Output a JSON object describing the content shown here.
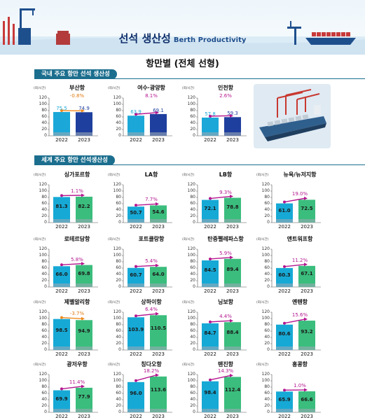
{
  "banner": {
    "title_ko": "선석 생산성",
    "title_en": "Berth Productivity"
  },
  "page_title": "항만별 (전체 선형)",
  "colors": {
    "domestic_2022": "#1ba8d8",
    "domestic_2023": "#1f3f9e",
    "world_2022": "#16a9d6",
    "world_2023": "#3bbd7d",
    "growth_line": "#b4168f",
    "decline_line": "#f08a1c",
    "growth_text": "#b4168f",
    "decline_text": "#e27a10",
    "domestic_value_2022": "#1ba8d8",
    "domestic_value_2023": "#1f3f9e",
    "world_value": "#1a1a1a"
  },
  "domestic": {
    "section_label": "국내 주요 항만 선석 생산성",
    "charts": [
      {
        "port": "부산항",
        "unit": "(회/시간)",
        "growth": "-0.8%",
        "values": [
          75.5,
          74.9
        ],
        "value_labels": [
          "75.5",
          "74.9"
        ]
      },
      {
        "port": "여수·광양항",
        "unit": "(회/시간)",
        "growth": "8.1%",
        "values": [
          63.9,
          69.1
        ],
        "value_labels": [
          "63.9",
          "69.1"
        ]
      },
      {
        "port": "인천항",
        "unit": "(회/시간)",
        "growth": "2.6%",
        "values": [
          57.8,
          59.3
        ],
        "value_labels": [
          "57.8",
          "59.3"
        ]
      }
    ]
  },
  "world": {
    "section_label": "세계 주요 항만 선석생산성",
    "charts": [
      {
        "port": "싱가포르항",
        "unit": "(회/시간)",
        "growth": "1.1%",
        "values": [
          81.3,
          82.2
        ],
        "value_labels": [
          "81.3",
          "82.2"
        ]
      },
      {
        "port": "LA항",
        "unit": "(회/시간)",
        "growth": "7.7%",
        "values": [
          50.7,
          54.6
        ],
        "value_labels": [
          "50.7",
          "54.6"
        ]
      },
      {
        "port": "LB항",
        "unit": "(회/시간)",
        "growth": "9.3%",
        "values": [
          72.1,
          78.8
        ],
        "value_labels": [
          "72.1",
          "78.8"
        ]
      },
      {
        "port": "뉴욕/뉴저지항",
        "unit": "(회/시간)",
        "growth": "19.0%",
        "values": [
          61.0,
          72.5
        ],
        "value_labels": [
          "61.0",
          "72.5"
        ]
      },
      {
        "port": "로테르담항",
        "unit": "(회/시간)",
        "growth": "5.8%",
        "values": [
          66.0,
          69.8
        ],
        "value_labels": [
          "66.0",
          "69.8"
        ]
      },
      {
        "port": "포트클랑항",
        "unit": "(회/시간)",
        "growth": "5.4%",
        "values": [
          60.7,
          64.0
        ],
        "value_labels": [
          "60.7",
          "64.0"
        ]
      },
      {
        "port": "탄중펠레파스항",
        "unit": "(회/시간)",
        "growth": "5.9%",
        "values": [
          84.5,
          89.4
        ],
        "value_labels": [
          "84.5",
          "89.4"
        ]
      },
      {
        "port": "앤트워프항",
        "unit": "(회/시간)",
        "growth": "11.2%",
        "values": [
          60.3,
          67.1
        ],
        "value_labels": [
          "60.3",
          "67.1"
        ]
      },
      {
        "port": "제벨알리항",
        "unit": "(회/시간)",
        "growth": "-3.7%",
        "values": [
          98.5,
          94.9
        ],
        "value_labels": [
          "98.5",
          "94.9"
        ]
      },
      {
        "port": "상하이항",
        "unit": "(회/시간)",
        "growth": "6.4%",
        "values": [
          103.9,
          110.5
        ],
        "value_labels": [
          "103.9",
          "110.5"
        ]
      },
      {
        "port": "닝보항",
        "unit": "(회/시간)",
        "growth": "4.4%",
        "values": [
          84.7,
          88.4
        ],
        "value_labels": [
          "84.7",
          "88.4"
        ]
      },
      {
        "port": "옌톈항",
        "unit": "(회/시간)",
        "growth": "15.6%",
        "values": [
          80.6,
          93.2
        ],
        "value_labels": [
          "80.6",
          "93.2"
        ]
      },
      {
        "port": "광저우항",
        "unit": "(회/시간)",
        "growth": "11.4%",
        "values": [
          69.9,
          77.9
        ],
        "value_labels": [
          "69.9",
          "77.9"
        ]
      },
      {
        "port": "칭다오항",
        "unit": "(회/시간)",
        "growth": "18.2%",
        "values": [
          96.0,
          113.6
        ],
        "value_labels": [
          "96.0",
          "113.6"
        ]
      },
      {
        "port": "톈진항",
        "unit": "(회/시간)",
        "growth": "14.3%",
        "values": [
          98.4,
          112.4
        ],
        "value_labels": [
          "98.4",
          "112.4"
        ]
      },
      {
        "port": "홍콩항",
        "unit": "(회/시간)",
        "growth": "1.0%",
        "values": [
          65.9,
          66.6
        ],
        "value_labels": [
          "65.9",
          "66.6"
        ]
      }
    ]
  },
  "chart_data": {
    "type": "bar",
    "categories": [
      "2022",
      "2023"
    ],
    "ylim": [
      0,
      120
    ],
    "yticks": [
      "0",
      "20",
      "40",
      "60",
      "80",
      "100",
      "120"
    ],
    "ylabel": "(회/시간)"
  }
}
